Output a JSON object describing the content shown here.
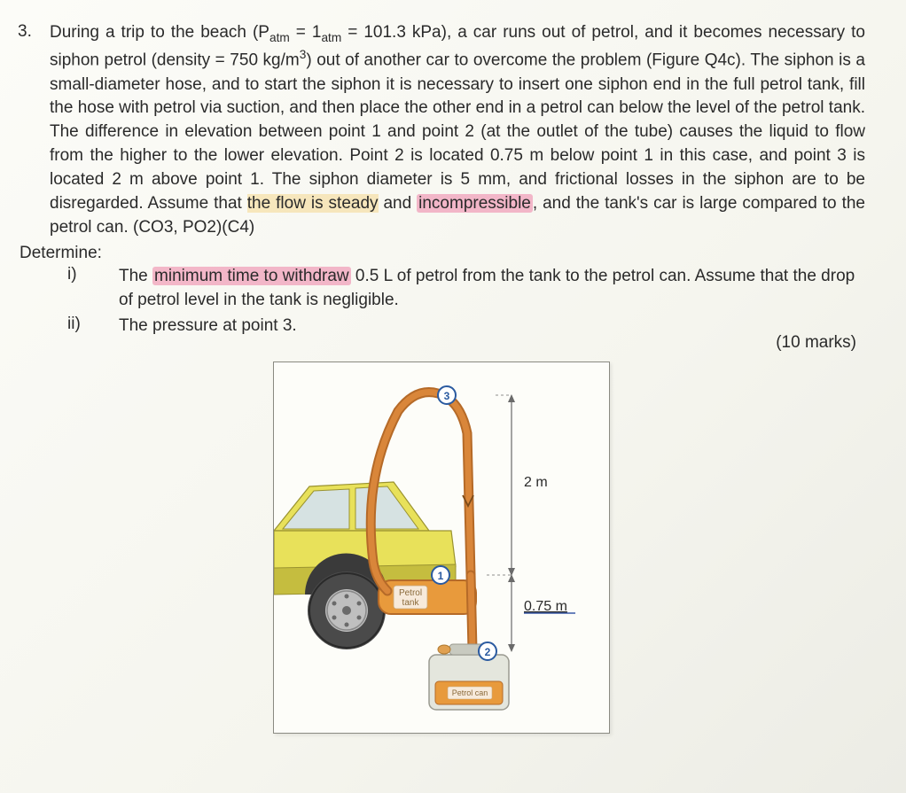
{
  "question": {
    "number": "3.",
    "intro_text_html": "During a trip to the beach (P<span class='sub'>atm</span> = 1<span class='sub'>atm</span> = 101.3 kPa), a car runs out of petrol, and it becomes necessary to siphon petrol (density = 750 kg/m<span class='sup'>3</span>) out of another car to overcome the problem (Figure Q4c). The siphon is a small-diameter hose, and to start the siphon it is necessary to insert one siphon end in the full petrol tank, fill the hose with petrol via suction, and then place the other end in a petrol can below the level of the petrol tank. The difference in elevation between point 1 and point 2 (at the outlet of the tube) causes the liquid to flow from the higher to the lower elevation. Point 2 is located 0.75 m below point 1 in this case, and point 3 is located 2 m above point 1. The siphon diameter is 5 mm, and frictional losses in the siphon are to be disregarded. Assume that <span class='hl-yellow'>the flow is steady</span> and <span class='hl-pink'>incompressible</span>, and the tank's car is large compared to the petrol can. (CO3, PO2)(C4)",
    "determine_label": "Determine:",
    "parts": [
      {
        "num": "i)",
        "text_html": "The <span class='hl-pink'>minimum time to withdraw</span> 0.5 L of petrol from the tank to the petrol can. Assume that the drop of petrol level in the tank is negligible."
      },
      {
        "num": "ii)",
        "text_html": "The pressure at point 3."
      }
    ],
    "marks": "(10 marks)"
  },
  "figure": {
    "background": "#fdfdf9",
    "labels": {
      "petrol_tank": "Petrol\ntank",
      "petrol_can": "Petrol can",
      "dim_top": "2 m",
      "dim_bottom": "0.75  m"
    },
    "points": {
      "p1": "1",
      "p2": "2",
      "p3": "3"
    },
    "colors": {
      "car_body": "#e8e15a",
      "car_shade": "#c5bd3f",
      "car_window": "#d6e2e2",
      "tire": "#4a4a4a",
      "tire_rim": "#bfbfbf",
      "hose": "#d9863a",
      "hose_dark": "#b56a28",
      "tank_fill": "#e89a3c",
      "tank_border": "#b56a28",
      "can_body": "#e4e6dd",
      "can_cap": "#e0a050",
      "marker_fill": "#ffffff",
      "marker_stroke": "#2a5aa0",
      "text": "#2a2a2a",
      "dim_line": "#6a6a6a",
      "underline": "#3a5aa8"
    }
  }
}
